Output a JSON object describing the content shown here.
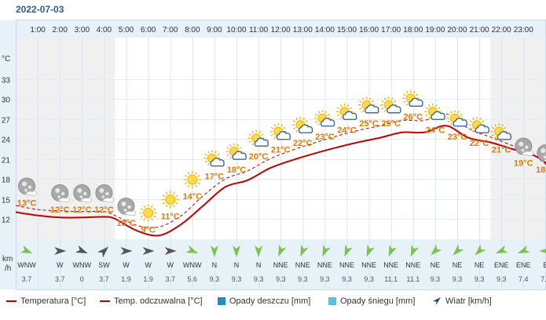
{
  "date": "2022-07-03",
  "units": {
    "temp": "°C",
    "wind_line1": "km",
    "wind_line2": "/h"
  },
  "legend": {
    "temp": "Temperatura [°C]",
    "feels": "Temp. odczuwalna [°C]",
    "rain": "Opady deszczu [mm]",
    "snow": "Opady śniegu [mm]",
    "wind": "Wiatr [km/h]"
  },
  "colors": {
    "temp": "#c00000",
    "rain": "#1e8fc0",
    "snow": "#5bc0d6",
    "wind": "#26405a"
  },
  "chart_data": {
    "type": "line",
    "x": [
      "1:00",
      "2:00",
      "3:00",
      "4:00",
      "5:00",
      "6:00",
      "7:00",
      "8:00",
      "9:00",
      "10:00",
      "11:00",
      "12:00",
      "13:00",
      "14:00",
      "15:00",
      "16:00",
      "17:00",
      "18:00",
      "19:00",
      "20:00",
      "21:00",
      "22:00",
      "23:00"
    ],
    "yticks": [
      12,
      15,
      18,
      21,
      24,
      27,
      30,
      33
    ],
    "ylim": [
      8,
      36
    ],
    "series": [
      {
        "name": "Temperatura [°C]",
        "style": "solid"
      },
      {
        "name": "Temp. odczuwalna [°C]",
        "style": "dashed"
      }
    ],
    "temp_points": [
      {
        "h": 0.0,
        "v": 13.0
      },
      {
        "h": 1.0,
        "v": 12.5
      },
      {
        "h": 2.0,
        "v": 12.2
      },
      {
        "h": 3.0,
        "v": 12.2
      },
      {
        "h": 4.0,
        "v": 12.3
      },
      {
        "h": 4.5,
        "v": 12.0
      },
      {
        "h": 5.5,
        "v": 10.2
      },
      {
        "h": 6.5,
        "v": 9.5
      },
      {
        "h": 7.5,
        "v": 11.2
      },
      {
        "h": 8.5,
        "v": 14.0
      },
      {
        "h": 9.5,
        "v": 16.8
      },
      {
        "h": 10.5,
        "v": 17.8
      },
      {
        "h": 11.5,
        "v": 19.6
      },
      {
        "h": 12.5,
        "v": 20.8
      },
      {
        "h": 13.5,
        "v": 21.8
      },
      {
        "h": 14.5,
        "v": 22.7
      },
      {
        "h": 15.5,
        "v": 23.5
      },
      {
        "h": 16.5,
        "v": 24.2
      },
      {
        "h": 17.5,
        "v": 25.0
      },
      {
        "h": 18.5,
        "v": 25.0
      },
      {
        "h": 19.5,
        "v": 26.0
      },
      {
        "h": 20.5,
        "v": 24.2
      },
      {
        "h": 21.5,
        "v": 23.5
      },
      {
        "h": 22.5,
        "v": 22.5
      },
      {
        "h": 23.5,
        "v": 21.5
      },
      {
        "h": 24.5,
        "v": 19.5
      },
      {
        "h": 25.5,
        "v": 18.5
      },
      {
        "h": 26.0,
        "v": 18.3
      }
    ],
    "feels_points": [
      {
        "h": 0.0,
        "v": 14.0
      },
      {
        "h": 1.0,
        "v": 13.4
      },
      {
        "h": 2.0,
        "v": 13.2
      },
      {
        "h": 3.0,
        "v": 13.1
      },
      {
        "h": 4.0,
        "v": 13.1
      },
      {
        "h": 4.5,
        "v": 12.5
      },
      {
        "h": 5.5,
        "v": 11.0
      },
      {
        "h": 6.5,
        "v": 10.8
      },
      {
        "h": 7.5,
        "v": 12.5
      },
      {
        "h": 8.5,
        "v": 15.5
      },
      {
        "h": 9.5,
        "v": 18.0
      },
      {
        "h": 10.5,
        "v": 19.2
      },
      {
        "h": 11.5,
        "v": 21.0
      },
      {
        "h": 12.5,
        "v": 22.3
      },
      {
        "h": 13.5,
        "v": 23.4
      },
      {
        "h": 14.5,
        "v": 24.4
      },
      {
        "h": 15.5,
        "v": 25.3
      },
      {
        "h": 16.5,
        "v": 26.0
      },
      {
        "h": 17.5,
        "v": 26.8
      },
      {
        "h": 18.5,
        "v": 26.8
      },
      {
        "h": 19.5,
        "v": 27.8
      },
      {
        "h": 20.5,
        "v": 25.6
      },
      {
        "h": 21.5,
        "v": 24.3
      },
      {
        "h": 22.5,
        "v": 23.0
      },
      {
        "h": 23.5,
        "v": 21.5
      },
      {
        "h": 24.5,
        "v": 19.0
      },
      {
        "h": 25.5,
        "v": 18.0
      },
      {
        "h": 26.0,
        "v": 17.6
      }
    ],
    "conditions": [
      {
        "h": 0.5,
        "icon": "moon-clouds-icon",
        "label": "13°C",
        "temp": 13
      },
      {
        "h": 2.0,
        "icon": "moon-clouds-icon",
        "label": "12°C",
        "temp": 12
      },
      {
        "h": 3.0,
        "icon": "moon-clouds-icon",
        "label": "12°C",
        "temp": 12
      },
      {
        "h": 4.0,
        "icon": "moon-clouds-icon",
        "label": "12°C",
        "temp": 12
      },
      {
        "h": 5.0,
        "icon": "moon-clouds-icon",
        "label": "10°C",
        "temp": 10
      },
      {
        "h": 6.0,
        "icon": "sun-icon",
        "label": "9°C",
        "temp": 9
      },
      {
        "h": 7.0,
        "icon": "sun-icon",
        "label": "11°C",
        "temp": 11
      },
      {
        "h": 8.0,
        "icon": "sun-icon",
        "label": "14°C",
        "temp": 14
      },
      {
        "h": 9.0,
        "icon": "sun-cloud-icon",
        "label": "17°C",
        "temp": 17
      },
      {
        "h": 10.0,
        "icon": "sun-cloud-icon",
        "label": "18°C",
        "temp": 18
      },
      {
        "h": 11.0,
        "icon": "sun-cloud-icon",
        "label": "20°C",
        "temp": 20
      },
      {
        "h": 12.0,
        "icon": "sun-cloud-icon",
        "label": "21°C",
        "temp": 21
      },
      {
        "h": 13.0,
        "icon": "sun-cloud-icon",
        "label": "22°C",
        "temp": 22
      },
      {
        "h": 14.0,
        "icon": "sun-cloud-icon",
        "label": "23°C",
        "temp": 23
      },
      {
        "h": 15.0,
        "icon": "sun-cloud-icon",
        "label": "24°C",
        "temp": 24
      },
      {
        "h": 16.0,
        "icon": "sun-cloud-icon",
        "label": "25°C",
        "temp": 25
      },
      {
        "h": 17.0,
        "icon": "sun-cloud-icon",
        "label": "25°C",
        "temp": 25
      },
      {
        "h": 18.0,
        "icon": "sun-cloud-icon",
        "label": "26°C",
        "temp": 26
      },
      {
        "h": 19.0,
        "icon": "sun-cloud-icon",
        "label": "24°C",
        "temp": 24
      },
      {
        "h": 20.0,
        "icon": "sun-cloud-icon",
        "label": "23°C",
        "temp": 23
      },
      {
        "h": 21.0,
        "icon": "sun-cloud-icon",
        "label": "22°C",
        "temp": 22
      },
      {
        "h": 22.0,
        "icon": "sun-cloud-icon",
        "label": "21°C",
        "temp": 21
      },
      {
        "h": 23.0,
        "icon": "moon-clouds-icon",
        "label": "19°C",
        "temp": 19
      },
      {
        "h": 24.0,
        "icon": "moon-clouds-icon",
        "label": "18°C",
        "temp": 18
      }
    ],
    "wind": [
      {
        "h": 0.5,
        "dir": "WNW",
        "deg": 292.5,
        "speed": "3.7"
      },
      {
        "h": 2.0,
        "dir": "W",
        "deg": 270,
        "speed": "3.7"
      },
      {
        "h": 3.0,
        "dir": "WNW",
        "deg": 292.5,
        "speed": "0"
      },
      {
        "h": 4.0,
        "dir": "SW",
        "deg": 225,
        "speed": "3.7"
      },
      {
        "h": 5.0,
        "dir": "W",
        "deg": 270,
        "speed": "1.9"
      },
      {
        "h": 6.0,
        "dir": "W",
        "deg": 270,
        "speed": "1.9"
      },
      {
        "h": 7.0,
        "dir": "W",
        "deg": 270,
        "speed": "3.7"
      },
      {
        "h": 8.0,
        "dir": "WNW",
        "deg": 292.5,
        "speed": "5.6"
      },
      {
        "h": 9.0,
        "dir": "N",
        "deg": 0,
        "speed": "9.3"
      },
      {
        "h": 10.0,
        "dir": "N",
        "deg": 0,
        "speed": "9.3"
      },
      {
        "h": 11.0,
        "dir": "N",
        "deg": 0,
        "speed": "9.3"
      },
      {
        "h": 12.0,
        "dir": "NNE",
        "deg": 22.5,
        "speed": "9.3"
      },
      {
        "h": 13.0,
        "dir": "NNE",
        "deg": 22.5,
        "speed": "9.3"
      },
      {
        "h": 14.0,
        "dir": "NNE",
        "deg": 22.5,
        "speed": "9.3"
      },
      {
        "h": 15.0,
        "dir": "NNE",
        "deg": 22.5,
        "speed": "9.3"
      },
      {
        "h": 16.0,
        "dir": "NNE",
        "deg": 22.5,
        "speed": "9.3"
      },
      {
        "h": 17.0,
        "dir": "NNE",
        "deg": 22.5,
        "speed": "11.1"
      },
      {
        "h": 18.0,
        "dir": "NNE",
        "deg": 22.5,
        "speed": "11.1"
      },
      {
        "h": 19.0,
        "dir": "NE",
        "deg": 45,
        "speed": "9.3"
      },
      {
        "h": 20.0,
        "dir": "NE",
        "deg": 45,
        "speed": "9.3"
      },
      {
        "h": 21.0,
        "dir": "NE",
        "deg": 45,
        "speed": "9.3"
      },
      {
        "h": 22.0,
        "dir": "ENE",
        "deg": 67.5,
        "speed": "9.3"
      },
      {
        "h": 23.0,
        "dir": "ENE",
        "deg": 67.5,
        "speed": "7.4"
      },
      {
        "h": 24.0,
        "dir": "E",
        "deg": 90,
        "speed": "7.4"
      }
    ],
    "night_hours": [
      [
        0,
        4.5
      ],
      [
        21.5,
        26
      ]
    ],
    "grid": true
  }
}
